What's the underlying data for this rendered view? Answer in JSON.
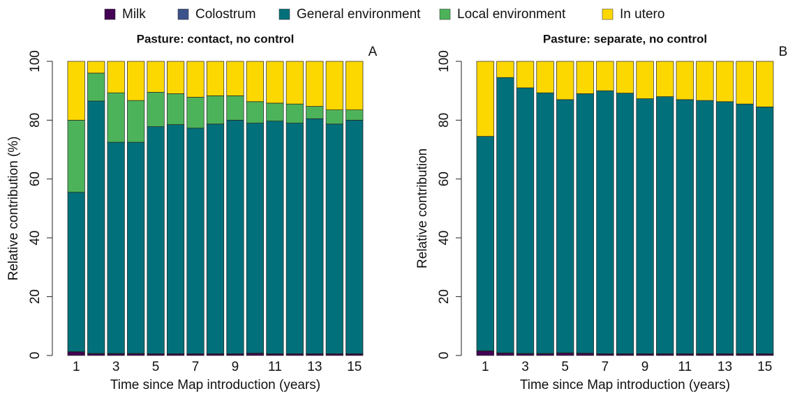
{
  "chart_data": [
    {
      "type": "stacked_bar",
      "title": "Pasture: contact, no control",
      "annotation": "A",
      "x_label": "Time since Map introduction (years)",
      "y_label": "Relative contribution (%)",
      "categories": [
        "1",
        null,
        "3",
        null,
        "5",
        null,
        "7",
        null,
        "9",
        null,
        "11",
        null,
        "13",
        null,
        "15"
      ],
      "ylim": [
        0,
        100
      ],
      "yticks": [
        0,
        20,
        40,
        60,
        80,
        100
      ],
      "legend": "top",
      "series": [
        {
          "name": "Milk",
          "color": "#440154",
          "values": [
            1.2,
            0.6,
            0.6,
            0.6,
            0.5,
            0.5,
            0.5,
            0.5,
            0.5,
            0.7,
            0.5,
            0.5,
            0.5,
            0.5,
            0.5
          ]
        },
        {
          "name": "Colostrum",
          "color": "#3b528b",
          "values": [
            0.1,
            0.1,
            0.1,
            0.1,
            0.1,
            0.1,
            0.1,
            0.1,
            0.1,
            0.1,
            0.1,
            0.1,
            0.1,
            0.1,
            0.1
          ]
        },
        {
          "name": "General environment",
          "color": "#02707a",
          "values": [
            54.2,
            85.8,
            71.8,
            71.8,
            77.2,
            77.9,
            76.7,
            78.1,
            79.4,
            78.2,
            79.1,
            78.4,
            79.9,
            78.1,
            79.4
          ]
        },
        {
          "name": "Local environment",
          "color": "#4db35a",
          "values": [
            24.5,
            9.5,
            16.8,
            14.2,
            11.7,
            10.5,
            10.5,
            9.6,
            8.3,
            7.3,
            6.1,
            6.5,
            4.2,
            4.8,
            3.5
          ]
        },
        {
          "name": "In utero",
          "color": "#fdd800",
          "values": [
            20,
            4,
            10.7,
            13.3,
            10.5,
            11,
            12.2,
            11.7,
            11.7,
            13.7,
            14.2,
            14.5,
            15.3,
            16.5,
            16.5
          ]
        }
      ]
    },
    {
      "type": "stacked_bar",
      "title": "Pasture: separate, no control",
      "annotation": "B",
      "x_label": "Time since Map introduction (years)",
      "y_label": "Relative contribution",
      "categories": [
        "1",
        null,
        "3",
        null,
        "5",
        null,
        "7",
        null,
        "9",
        null,
        "11",
        null,
        "13",
        null,
        "15"
      ],
      "ylim": [
        0,
        100
      ],
      "yticks": [
        0,
        20,
        40,
        60,
        80,
        100
      ],
      "series": [
        {
          "color": "#440154",
          "values": [
            1.5,
            0.8,
            0.6,
            0.6,
            0.8,
            0.7,
            0.5,
            0.5,
            0.5,
            0.5,
            0.5,
            0.5,
            0.5,
            0.5,
            0.5
          ]
        },
        {
          "color": "#3b528b",
          "values": [
            0.1,
            0.1,
            0.1,
            0.1,
            0.1,
            0.1,
            0.1,
            0.1,
            0.1,
            0.1,
            0.1,
            0.1,
            0.1,
            0.1,
            0.1
          ]
        },
        {
          "color": "#02707a",
          "values": [
            72.9,
            93.6,
            90.3,
            88.6,
            86.1,
            88.2,
            89.4,
            88.6,
            86.7,
            87.4,
            86.4,
            86.1,
            85.7,
            84.9,
            83.9
          ]
        },
        {
          "color": "#4db35a",
          "values": [
            0,
            0,
            0,
            0,
            0,
            0,
            0,
            0,
            0,
            0,
            0,
            0,
            0,
            0,
            0
          ]
        },
        {
          "color": "#fdd800",
          "values": [
            25.5,
            5.5,
            9,
            10.7,
            13,
            11,
            10,
            10.8,
            12.7,
            12,
            13,
            13.3,
            13.7,
            14.5,
            15.5
          ]
        }
      ]
    }
  ]
}
